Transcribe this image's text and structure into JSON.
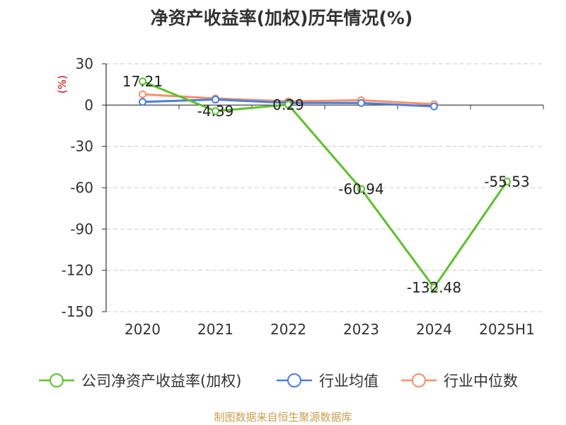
{
  "chart_data": {
    "type": "line",
    "title": "净资产收益率(加权)历年情况(%)",
    "ylabel": "(%)",
    "categories": [
      "2020",
      "2021",
      "2022",
      "2023",
      "2024",
      "2025H1"
    ],
    "ylim": [
      -150,
      30
    ],
    "yticks": [
      30,
      0,
      -30,
      -60,
      -90,
      -120,
      -150
    ],
    "grid": true,
    "legend_position": "bottom",
    "series": [
      {
        "name": "公司净资产收益率(加权)",
        "color": "#5dc12b",
        "values": [
          17.21,
          -4.39,
          0.29,
          -60.94,
          -132.48,
          -55.53
        ],
        "labels": [
          "17.21",
          "-4.39",
          "0.29",
          "-60.94",
          "-132.48",
          "-55.53"
        ]
      },
      {
        "name": "行业均值",
        "color": "#4a7fdc",
        "values": [
          2.3,
          4.0,
          1.6,
          1.5,
          -1.0,
          null
        ]
      },
      {
        "name": "行业中位数",
        "color": "#f6916a",
        "values": [
          7.8,
          4.8,
          2.7,
          3.5,
          0.6,
          null
        ]
      }
    ],
    "source": "制图数据来自恒生聚源数据库",
    "source_color": "#c8a050",
    "ylabel_color": "#cc0000"
  }
}
